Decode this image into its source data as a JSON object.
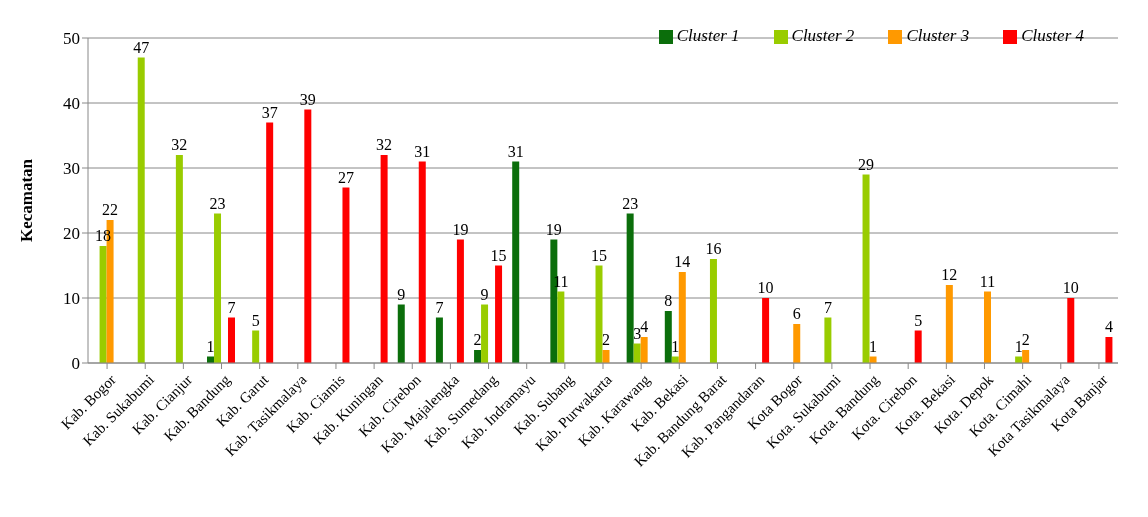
{
  "chart_data": {
    "type": "bar",
    "ylabel": "Kecamatan",
    "categories": [
      "Kab. Bogor",
      "Kab. Sukabumi",
      "Kab. Cianjur",
      "Kab. Bandung",
      "Kab. Garut",
      "Kab. Tasikmalaya",
      "Kab. Ciamis",
      "Kab. Kuningan",
      "Kab. Cirebon",
      "Kab. Majalengka",
      "Kab. Sumedang",
      "Kab. Indramayu",
      "Kab. Subang",
      "Kab. Purwakarta",
      "Kab. Karawang",
      "Kab. Bekasi",
      "Kab. Bandung Barat",
      "Kab. Pangandaran",
      "Kota Bogor",
      "Kota. Sukabumi",
      "Kota. Bandung",
      "Kota. Cirebon",
      "Kota. Bekasi",
      "Kota. Depok",
      "Kota. Cimahi",
      "Kota Tasikmalaya",
      "Kota Banjar"
    ],
    "series": [
      {
        "name": "Cluster 1",
        "color": "#0b6e0b",
        "values": [
          null,
          null,
          null,
          1,
          null,
          null,
          null,
          null,
          9,
          7,
          2,
          31,
          19,
          null,
          23,
          8,
          null,
          null,
          null,
          null,
          null,
          null,
          null,
          null,
          null,
          null,
          null
        ]
      },
      {
        "name": "Cluster 2",
        "color": "#99cc00",
        "values": [
          18,
          47,
          32,
          23,
          5,
          null,
          null,
          null,
          null,
          null,
          9,
          null,
          11,
          15,
          3,
          1,
          16,
          null,
          null,
          7,
          29,
          null,
          null,
          null,
          1,
          null,
          null
        ]
      },
      {
        "name": "Cluster 3",
        "color": "#ff9900",
        "values": [
          22,
          null,
          null,
          null,
          null,
          null,
          null,
          null,
          null,
          null,
          null,
          null,
          null,
          2,
          4,
          14,
          null,
          null,
          6,
          null,
          1,
          null,
          12,
          11,
          2,
          null,
          null
        ]
      },
      {
        "name": "Cluster 4",
        "color": "#ff0000",
        "values": [
          null,
          null,
          null,
          7,
          37,
          39,
          27,
          32,
          31,
          19,
          15,
          null,
          null,
          null,
          null,
          null,
          null,
          10,
          null,
          null,
          null,
          5,
          null,
          null,
          null,
          10,
          4
        ]
      }
    ],
    "ylim": [
      0,
      50
    ],
    "yticks": [
      0,
      10,
      20,
      30,
      40,
      50
    ],
    "grid": "y",
    "legend": "top right",
    "data_labels": true
  }
}
